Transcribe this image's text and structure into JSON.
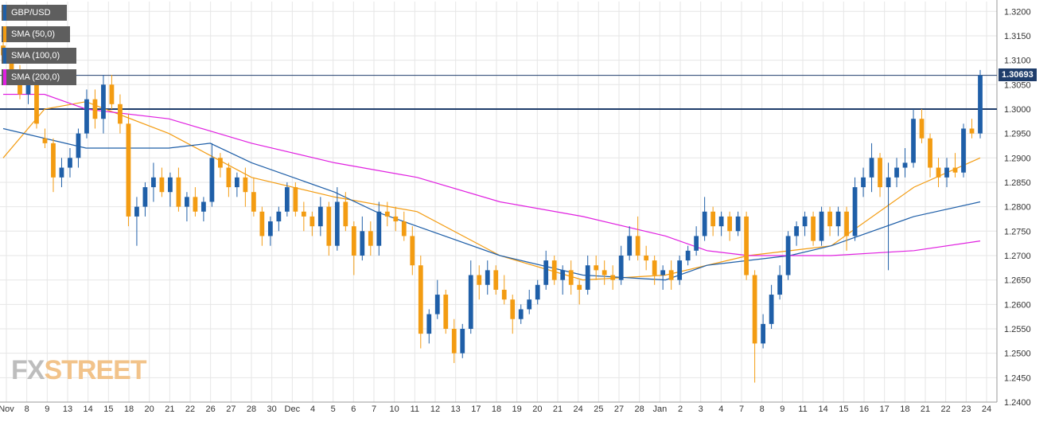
{
  "chart_data": {
    "type": "candlestick",
    "instrument": "GBP/USD",
    "ylim": [
      1.24,
      1.322
    ],
    "yticks": [
      "1.3200",
      "1.3150",
      "1.3100",
      "1.3050",
      "1.3000",
      "1.2950",
      "1.2900",
      "1.2850",
      "1.2800",
      "1.2750",
      "1.2700",
      "1.2650",
      "1.2600",
      "1.2550",
      "1.2500",
      "1.2450",
      "1.2400"
    ],
    "xticks": [
      "Nov",
      "8",
      "9",
      "13",
      "14",
      "15",
      "18",
      "20",
      "21",
      "22",
      "26",
      "27",
      "28",
      "30",
      "Dec",
      "4",
      "5",
      "6",
      "7",
      "10",
      "11",
      "12",
      "13",
      "17",
      "18",
      "19",
      "20",
      "21",
      "24",
      "25",
      "27",
      "28",
      "Jan",
      "2",
      "3",
      "4",
      "7",
      "8",
      "9",
      "11",
      "14",
      "15",
      "16",
      "17",
      "18",
      "21",
      "22",
      "23",
      "24"
    ],
    "current_price": "1.30693",
    "horizontal_levels": [
      1.3069,
      1.3
    ],
    "legend": [
      "GBP/USD",
      "SMA (50,0)",
      "SMA (100,0)",
      "SMA (200,0)"
    ],
    "series": [
      {
        "name": "SMA (50,0)",
        "color": "#f39c12",
        "x": [
          0,
          10,
          20,
          40,
          60,
          80,
          100,
          120,
          140,
          160,
          180,
          200,
          220,
          236
        ],
        "values": [
          1.29,
          1.3,
          1.3015,
          1.295,
          1.286,
          1.282,
          1.279,
          1.27,
          1.265,
          1.266,
          1.27,
          1.272,
          1.284,
          1.29
        ]
      },
      {
        "name": "SMA (100,0)",
        "color": "#1f5fa8",
        "x": [
          0,
          20,
          40,
          50,
          60,
          80,
          90,
          100,
          120,
          140,
          160,
          170,
          190,
          200,
          220,
          236
        ],
        "values": [
          1.296,
          1.292,
          1.292,
          1.293,
          1.289,
          1.283,
          1.279,
          1.276,
          1.27,
          1.266,
          1.265,
          1.268,
          1.27,
          1.272,
          1.278,
          1.281
        ]
      },
      {
        "name": "SMA (200,0)",
        "color": "#e020e0",
        "x": [
          0,
          10,
          20,
          40,
          60,
          80,
          100,
          120,
          140,
          160,
          170,
          180,
          200,
          220,
          236
        ],
        "values": [
          1.303,
          1.303,
          1.3,
          1.298,
          1.293,
          1.289,
          1.286,
          1.281,
          1.278,
          1.274,
          1.271,
          1.27,
          1.27,
          1.271,
          1.273
        ]
      }
    ],
    "candles": [
      [
        1.313,
        1.315,
        1.31,
        1.311
      ],
      [
        1.31,
        1.312,
        1.307,
        1.308
      ],
      [
        1.308,
        1.309,
        1.302,
        1.303
      ],
      [
        1.303,
        1.306,
        1.301,
        1.305
      ],
      [
        1.305,
        1.307,
        1.296,
        1.297
      ],
      [
        1.294,
        1.296,
        1.292,
        1.293
      ],
      [
        1.293,
        1.294,
        1.283,
        1.286
      ],
      [
        1.286,
        1.29,
        1.284,
        1.288
      ],
      [
        1.288,
        1.292,
        1.286,
        1.29
      ],
      [
        1.29,
        1.296,
        1.288,
        1.295
      ],
      [
        1.295,
        1.304,
        1.294,
        1.302
      ],
      [
        1.302,
        1.304,
        1.296,
        1.298
      ],
      [
        1.298,
        1.307,
        1.295,
        1.305
      ],
      [
        1.305,
        1.307,
        1.3,
        1.301
      ],
      [
        1.301,
        1.303,
        1.295,
        1.297
      ],
      [
        1.297,
        1.299,
        1.276,
        1.278
      ],
      [
        1.278,
        1.282,
        1.272,
        1.28
      ],
      [
        1.28,
        1.285,
        1.278,
        1.284
      ],
      [
        1.284,
        1.289,
        1.281,
        1.286
      ],
      [
        1.286,
        1.288,
        1.282,
        1.283
      ],
      [
        1.283,
        1.287,
        1.28,
        1.286
      ],
      [
        1.286,
        1.288,
        1.279,
        1.28
      ],
      [
        1.28,
        1.283,
        1.277,
        1.282
      ],
      [
        1.282,
        1.284,
        1.278,
        1.279
      ],
      [
        1.279,
        1.282,
        1.277,
        1.281
      ],
      [
        1.281,
        1.293,
        1.28,
        1.29
      ],
      [
        1.29,
        1.291,
        1.286,
        1.288
      ],
      [
        1.288,
        1.289,
        1.282,
        1.284
      ],
      [
        1.284,
        1.287,
        1.282,
        1.286
      ],
      [
        1.286,
        1.288,
        1.28,
        1.283
      ],
      [
        1.283,
        1.286,
        1.278,
        1.279
      ],
      [
        1.279,
        1.28,
        1.272,
        1.274
      ],
      [
        1.274,
        1.278,
        1.272,
        1.277
      ],
      [
        1.277,
        1.28,
        1.275,
        1.279
      ],
      [
        1.279,
        1.285,
        1.278,
        1.284
      ],
      [
        1.284,
        1.285,
        1.278,
        1.279
      ],
      [
        1.279,
        1.281,
        1.275,
        1.278
      ],
      [
        1.278,
        1.279,
        1.274,
        1.276
      ],
      [
        1.276,
        1.282,
        1.274,
        1.28
      ],
      [
        1.28,
        1.281,
        1.27,
        1.272
      ],
      [
        1.272,
        1.284,
        1.271,
        1.281
      ],
      [
        1.281,
        1.283,
        1.275,
        1.276
      ],
      [
        1.276,
        1.277,
        1.266,
        1.27
      ],
      [
        1.27,
        1.278,
        1.269,
        1.275
      ],
      [
        1.275,
        1.277,
        1.27,
        1.272
      ],
      [
        1.272,
        1.281,
        1.27,
        1.279
      ],
      [
        1.279,
        1.281,
        1.276,
        1.278
      ],
      [
        1.278,
        1.28,
        1.275,
        1.277
      ],
      [
        1.277,
        1.279,
        1.273,
        1.274
      ],
      [
        1.274,
        1.276,
        1.266,
        1.268
      ],
      [
        1.268,
        1.27,
        1.251,
        1.254
      ],
      [
        1.254,
        1.259,
        1.252,
        1.258
      ],
      [
        1.258,
        1.265,
        1.257,
        1.262
      ],
      [
        1.262,
        1.263,
        1.254,
        1.255
      ],
      [
        1.255,
        1.257,
        1.248,
        1.25
      ],
      [
        1.25,
        1.256,
        1.249,
        1.255
      ],
      [
        1.255,
        1.269,
        1.254,
        1.266
      ],
      [
        1.266,
        1.268,
        1.261,
        1.264
      ],
      [
        1.264,
        1.269,
        1.262,
        1.267
      ],
      [
        1.267,
        1.268,
        1.262,
        1.263
      ],
      [
        1.263,
        1.266,
        1.26,
        1.261
      ],
      [
        1.261,
        1.262,
        1.254,
        1.257
      ],
      [
        1.257,
        1.26,
        1.256,
        1.259
      ],
      [
        1.259,
        1.263,
        1.258,
        1.261
      ],
      [
        1.261,
        1.265,
        1.26,
        1.264
      ],
      [
        1.264,
        1.271,
        1.263,
        1.269
      ],
      [
        1.269,
        1.27,
        1.264,
        1.265
      ],
      [
        1.265,
        1.268,
        1.262,
        1.267
      ],
      [
        1.267,
        1.269,
        1.262,
        1.264
      ],
      [
        1.264,
        1.265,
        1.26,
        1.263
      ],
      [
        1.263,
        1.27,
        1.262,
        1.268
      ],
      [
        1.268,
        1.27,
        1.265,
        1.267
      ],
      [
        1.267,
        1.269,
        1.264,
        1.266
      ],
      [
        1.266,
        1.268,
        1.263,
        1.265
      ],
      [
        1.265,
        1.272,
        1.264,
        1.27
      ],
      [
        1.27,
        1.276,
        1.269,
        1.274
      ],
      [
        1.274,
        1.278,
        1.269,
        1.27
      ],
      [
        1.27,
        1.272,
        1.267,
        1.269
      ],
      [
        1.269,
        1.27,
        1.264,
        1.266
      ],
      [
        1.266,
        1.268,
        1.263,
        1.267
      ],
      [
        1.267,
        1.269,
        1.263,
        1.265
      ],
      [
        1.265,
        1.27,
        1.264,
        1.269
      ],
      [
        1.269,
        1.272,
        1.268,
        1.271
      ],
      [
        1.271,
        1.276,
        1.27,
        1.274
      ],
      [
        1.274,
        1.282,
        1.273,
        1.279
      ],
      [
        1.279,
        1.28,
        1.274,
        1.276
      ],
      [
        1.276,
        1.279,
        1.274,
        1.278
      ],
      [
        1.278,
        1.279,
        1.273,
        1.275
      ],
      [
        1.275,
        1.279,
        1.274,
        1.278
      ],
      [
        1.278,
        1.279,
        1.265,
        1.266
      ],
      [
        1.266,
        1.267,
        1.244,
        1.252
      ],
      [
        1.252,
        1.258,
        1.251,
        1.256
      ],
      [
        1.256,
        1.264,
        1.255,
        1.262
      ],
      [
        1.262,
        1.268,
        1.261,
        1.266
      ],
      [
        1.266,
        1.275,
        1.265,
        1.274
      ],
      [
        1.274,
        1.277,
        1.272,
        1.276
      ],
      [
        1.276,
        1.279,
        1.274,
        1.278
      ],
      [
        1.278,
        1.279,
        1.272,
        1.273
      ],
      [
        1.273,
        1.28,
        1.272,
        1.279
      ],
      [
        1.279,
        1.28,
        1.274,
        1.276
      ],
      [
        1.276,
        1.28,
        1.274,
        1.279
      ],
      [
        1.279,
        1.28,
        1.271,
        1.274
      ],
      [
        1.274,
        1.286,
        1.273,
        1.284
      ],
      [
        1.284,
        1.288,
        1.282,
        1.286
      ],
      [
        1.286,
        1.293,
        1.283,
        1.29
      ],
      [
        1.29,
        1.291,
        1.282,
        1.284
      ],
      [
        1.284,
        1.289,
        1.267,
        1.286
      ],
      [
        1.286,
        1.29,
        1.284,
        1.288
      ],
      [
        1.288,
        1.292,
        1.286,
        1.289
      ],
      [
        1.289,
        1.3,
        1.288,
        1.298
      ],
      [
        1.298,
        1.3,
        1.293,
        1.294
      ],
      [
        1.294,
        1.295,
        1.286,
        1.288
      ],
      [
        1.288,
        1.29,
        1.284,
        1.286
      ],
      [
        1.286,
        1.29,
        1.284,
        1.288
      ],
      [
        1.288,
        1.291,
        1.286,
        1.287
      ],
      [
        1.287,
        1.297,
        1.286,
        1.296
      ],
      [
        1.296,
        1.298,
        1.294,
        1.295
      ],
      [
        1.295,
        1.308,
        1.294,
        1.3069
      ]
    ]
  }
}
